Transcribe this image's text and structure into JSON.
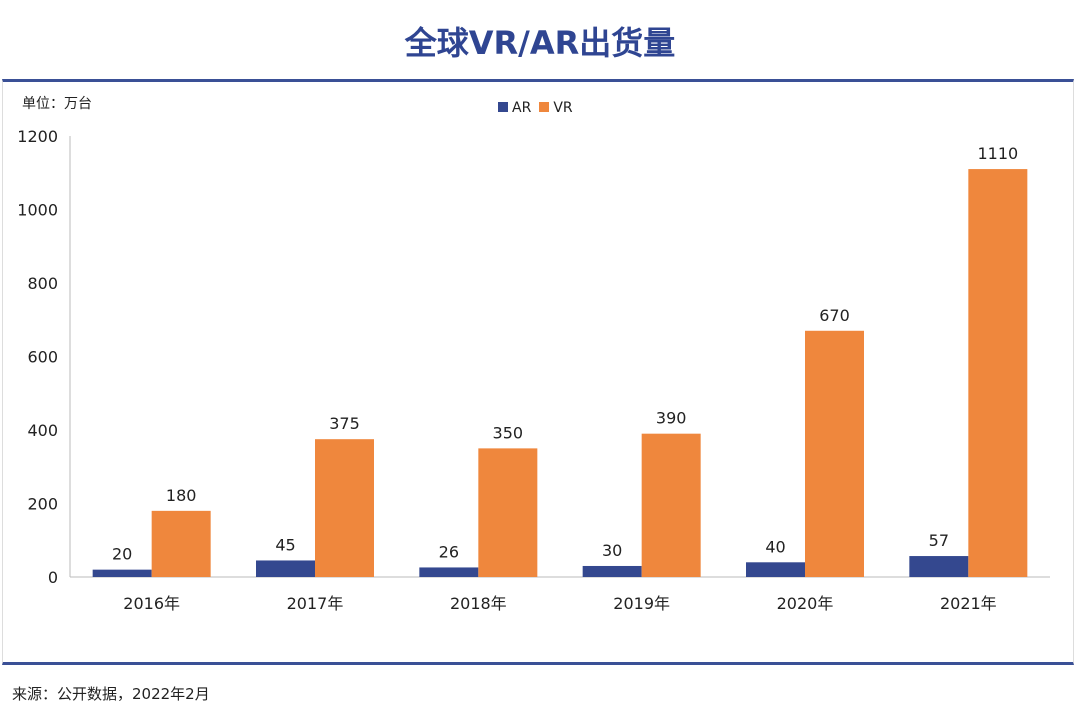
{
  "title": "全球VR/AR出货量",
  "unit_label": "单位：万台",
  "source": "来源：公开数据，2022年2月",
  "chart_data": {
    "type": "bar",
    "title": "全球VR/AR出货量",
    "categories": [
      "2016年",
      "2017年",
      "2018年",
      "2019年",
      "2020年",
      "2021年"
    ],
    "series": [
      {
        "name": "AR",
        "color": "#34488f",
        "values": [
          20,
          45,
          26,
          30,
          40,
          57
        ]
      },
      {
        "name": "VR",
        "color": "#ef873d",
        "values": [
          180,
          375,
          350,
          390,
          670,
          1110
        ]
      }
    ],
    "ylim": [
      0,
      1200
    ],
    "yticks": [
      0,
      200,
      400,
      600,
      800,
      1000,
      1200
    ],
    "xlabel": "",
    "ylabel": "单位：万台",
    "legend": "top-center",
    "grid": false
  }
}
